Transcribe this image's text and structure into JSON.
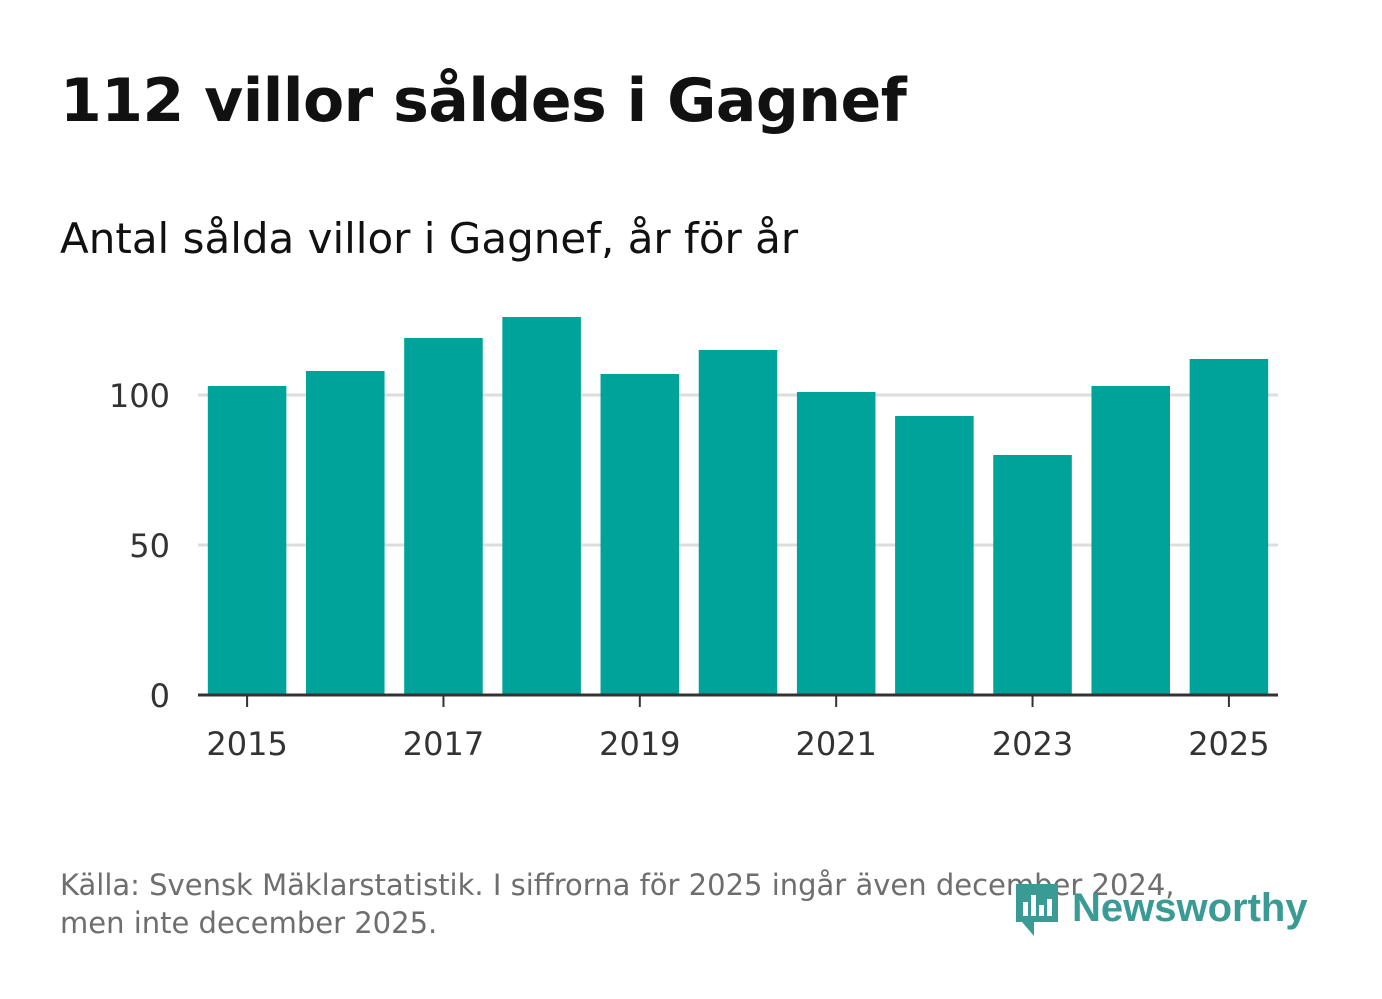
{
  "title": "112 villor såldes i Gagnef",
  "subtitle": "Antal sålda villor i Gagnef, år för år",
  "source": {
    "line1": "Källa: Svensk Mäklarstatistik. I siffrorna för 2025 ingår även december 2024,",
    "line2": "men inte december 2025."
  },
  "brand": {
    "name": "Newsworthy",
    "icon": "newsworthy-logo-icon"
  },
  "colors": {
    "bar": "#00a39a",
    "grid": "#dddddd",
    "axis": "#333333",
    "text": "#111111",
    "muted": "#6e6e6e",
    "brand": "#3a9b95"
  },
  "chart_data": {
    "type": "bar",
    "categories": [
      "2015",
      "2016",
      "2017",
      "2018",
      "2019",
      "2020",
      "2021",
      "2022",
      "2023",
      "2024",
      "2025"
    ],
    "values": [
      103,
      108,
      119,
      126,
      107,
      115,
      101,
      93,
      80,
      103,
      112
    ],
    "xticks": [
      "2015",
      "2017",
      "2019",
      "2021",
      "2023",
      "2025"
    ],
    "yticks": [
      0,
      50,
      100
    ],
    "ylim": [
      0,
      130
    ],
    "title": "Antal sålda villor i Gagnef, år för år",
    "xlabel": "",
    "ylabel": "",
    "grid": true
  }
}
